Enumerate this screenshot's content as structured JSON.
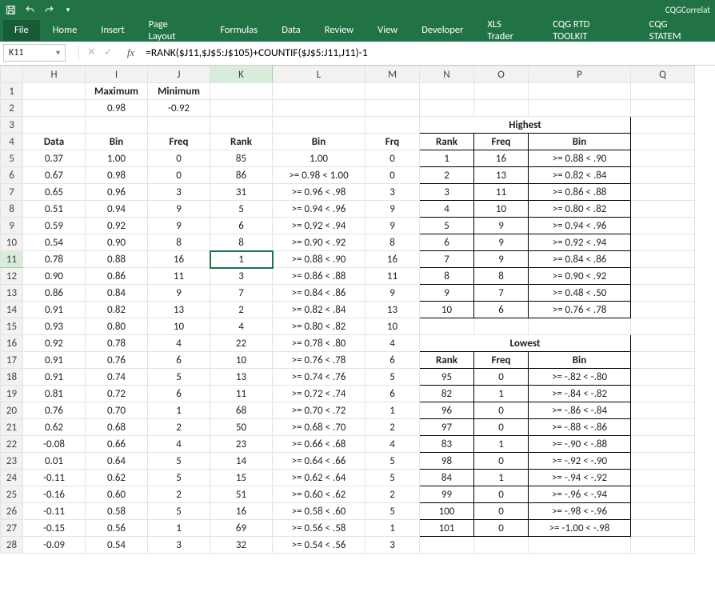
{
  "window": {
    "title_right": "CQGCorrelat"
  },
  "ribbon": {
    "tabs": [
      "File",
      "Home",
      "Insert",
      "Page Layout",
      "Formulas",
      "Data",
      "Review",
      "View",
      "Developer",
      "XLS Trader",
      "CQG RTD TOOLKIT",
      "CQG STATEM"
    ]
  },
  "formula_bar": {
    "name_box": "K11",
    "formula": "=RANK($J11,$J$5:J$105)+COUNTIF($J$5:J11,J11)-1"
  },
  "columns": {
    "labels": [
      "H",
      "I",
      "J",
      "K",
      "L",
      "M",
      "N",
      "O",
      "P",
      "Q"
    ],
    "widths": [
      78,
      78,
      78,
      78,
      116,
      68,
      68,
      68,
      128,
      80
    ]
  },
  "labels": {
    "maximum": "Maximum",
    "minimum": "Minimum",
    "data": "Data",
    "bin": "Bin",
    "freq": "Freq",
    "rank": "Rank",
    "binL": "Bin",
    "frq": "Frq",
    "highest": "Highest",
    "lowest": "Lowest",
    "rank2": "Rank",
    "freq2": "Freq",
    "bin2": "Bin"
  },
  "max_val": "0.98",
  "min_val": "-0.92",
  "rows": [
    {
      "r": 5,
      "data": "0.37",
      "bin": "1.00",
      "freq": "0",
      "rank": "85",
      "binL": "1.00",
      "frq": "0"
    },
    {
      "r": 6,
      "data": "0.67",
      "bin": "0.98",
      "freq": "0",
      "rank": "86",
      "binL": ">= 0.98 < 1.00",
      "frq": "0"
    },
    {
      "r": 7,
      "data": "0.65",
      "bin": "0.96",
      "freq": "3",
      "rank": "31",
      "binL": ">= 0.96 < .98",
      "frq": "3"
    },
    {
      "r": 8,
      "data": "0.51",
      "bin": "0.94",
      "freq": "9",
      "rank": "5",
      "binL": ">= 0.94 < .96",
      "frq": "9"
    },
    {
      "r": 9,
      "data": "0.59",
      "bin": "0.92",
      "freq": "9",
      "rank": "6",
      "binL": ">= 0.92 < .94",
      "frq": "9"
    },
    {
      "r": 10,
      "data": "0.54",
      "bin": "0.90",
      "freq": "8",
      "rank": "8",
      "binL": ">= 0.90 < .92",
      "frq": "8"
    },
    {
      "r": 11,
      "data": "0.78",
      "bin": "0.88",
      "freq": "16",
      "rank": "1",
      "binL": ">= 0.88 < .90",
      "frq": "16"
    },
    {
      "r": 12,
      "data": "0.90",
      "bin": "0.86",
      "freq": "11",
      "rank": "3",
      "binL": ">= 0.86 < .88",
      "frq": "11"
    },
    {
      "r": 13,
      "data": "0.86",
      "bin": "0.84",
      "freq": "9",
      "rank": "7",
      "binL": ">= 0.84 < .86",
      "frq": "9"
    },
    {
      "r": 14,
      "data": "0.91",
      "bin": "0.82",
      "freq": "13",
      "rank": "2",
      "binL": ">= 0.82 < .84",
      "frq": "13"
    },
    {
      "r": 15,
      "data": "0.93",
      "bin": "0.80",
      "freq": "10",
      "rank": "4",
      "binL": ">= 0.80 < .82",
      "frq": "10"
    },
    {
      "r": 16,
      "data": "0.92",
      "bin": "0.78",
      "freq": "4",
      "rank": "22",
      "binL": ">= 0.78 < .80",
      "frq": "4"
    },
    {
      "r": 17,
      "data": "0.91",
      "bin": "0.76",
      "freq": "6",
      "rank": "10",
      "binL": ">= 0.76 < .78",
      "frq": "6"
    },
    {
      "r": 18,
      "data": "0.91",
      "bin": "0.74",
      "freq": "5",
      "rank": "13",
      "binL": ">= 0.74 < .76",
      "frq": "5"
    },
    {
      "r": 19,
      "data": "0.81",
      "bin": "0.72",
      "freq": "6",
      "rank": "11",
      "binL": ">= 0.72 < .74",
      "frq": "6"
    },
    {
      "r": 20,
      "data": "0.76",
      "bin": "0.70",
      "freq": "1",
      "rank": "68",
      "binL": ">= 0.70 < .72",
      "frq": "1"
    },
    {
      "r": 21,
      "data": "0.62",
      "bin": "0.68",
      "freq": "2",
      "rank": "50",
      "binL": ">= 0.68 < .70",
      "frq": "2"
    },
    {
      "r": 22,
      "data": "-0.08",
      "bin": "0.66",
      "freq": "4",
      "rank": "23",
      "binL": ">= 0.66 < .68",
      "frq": "4"
    },
    {
      "r": 23,
      "data": "0.01",
      "bin": "0.64",
      "freq": "5",
      "rank": "14",
      "binL": ">= 0.64 < .66",
      "frq": "5"
    },
    {
      "r": 24,
      "data": "-0.11",
      "bin": "0.62",
      "freq": "5",
      "rank": "15",
      "binL": ">= 0.62 < .64",
      "frq": "5"
    },
    {
      "r": 25,
      "data": "-0.16",
      "bin": "0.60",
      "freq": "2",
      "rank": "51",
      "binL": ">= 0.60 < .62",
      "frq": "2"
    },
    {
      "r": 26,
      "data": "-0.11",
      "bin": "0.58",
      "freq": "5",
      "rank": "16",
      "binL": ">= 0.58 < .60",
      "frq": "5"
    },
    {
      "r": 27,
      "data": "-0.15",
      "bin": "0.56",
      "freq": "1",
      "rank": "69",
      "binL": ">= 0.56 < .58",
      "frq": "1"
    },
    {
      "r": 28,
      "data": "-0.09",
      "bin": "0.54",
      "freq": "3",
      "rank": "32",
      "binL": ">= 0.54 < .56",
      "frq": "3"
    }
  ],
  "highest": [
    {
      "rank": "1",
      "freq": "16",
      "bin": ">= 0.88 < .90"
    },
    {
      "rank": "2",
      "freq": "13",
      "bin": ">= 0.82 < .84"
    },
    {
      "rank": "3",
      "freq": "11",
      "bin": ">= 0.86 < .88"
    },
    {
      "rank": "4",
      "freq": "10",
      "bin": ">= 0.80 < .82"
    },
    {
      "rank": "5",
      "freq": "9",
      "bin": ">= 0.94 < .96"
    },
    {
      "rank": "6",
      "freq": "9",
      "bin": ">= 0.92 < .94"
    },
    {
      "rank": "7",
      "freq": "9",
      "bin": ">= 0.84 < .86"
    },
    {
      "rank": "8",
      "freq": "8",
      "bin": ">= 0.90 < .92"
    },
    {
      "rank": "9",
      "freq": "7",
      "bin": ">= 0.48 < .50"
    },
    {
      "rank": "10",
      "freq": "6",
      "bin": ">= 0.76 < .78"
    }
  ],
  "lowest": [
    {
      "rank": "95",
      "freq": "0",
      "bin": ">= -.82 < -.80"
    },
    {
      "rank": "82",
      "freq": "1",
      "bin": ">= -.84 < -.82"
    },
    {
      "rank": "96",
      "freq": "0",
      "bin": ">= -.86 < -.84"
    },
    {
      "rank": "97",
      "freq": "0",
      "bin": ">= -.88 < -.86"
    },
    {
      "rank": "83",
      "freq": "1",
      "bin": ">= -.90 < -.88"
    },
    {
      "rank": "98",
      "freq": "0",
      "bin": ">= -.92 < -.90"
    },
    {
      "rank": "84",
      "freq": "1",
      "bin": ">= -.94 < -.92"
    },
    {
      "rank": "99",
      "freq": "0",
      "bin": ">= -.96 < -.94"
    },
    {
      "rank": "100",
      "freq": "0",
      "bin": ">= -.98 < -.96"
    },
    {
      "rank": "101",
      "freq": "0",
      "bin": ">= -1.00 < -.98"
    }
  ],
  "active_cell": "K11",
  "style": {
    "accent": "#217346",
    "grid_border": "#e3e3e3",
    "header_bg": "#f3f2f1"
  }
}
